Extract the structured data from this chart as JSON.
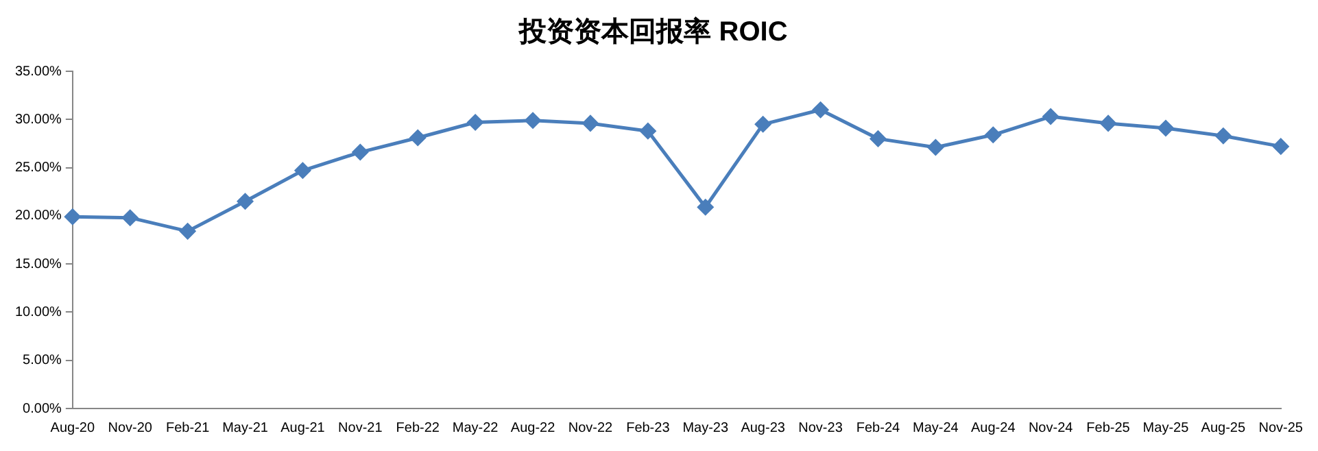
{
  "chart_data": {
    "type": "line",
    "title": "投资资本回报率 ROIC",
    "categories": [
      "Aug-20",
      "Nov-20",
      "Feb-21",
      "May-21",
      "Aug-21",
      "Nov-21",
      "Feb-22",
      "May-22",
      "Aug-22",
      "Nov-22",
      "Feb-23",
      "May-23",
      "Aug-23",
      "Nov-23",
      "Feb-24",
      "May-24",
      "Aug-24",
      "Nov-24",
      "Feb-25",
      "May-25",
      "Aug-25",
      "Nov-25"
    ],
    "series": [
      {
        "color": "#4a7ebb",
        "values": [
          19.9,
          19.8,
          18.4,
          21.5,
          24.7,
          26.6,
          28.1,
          29.7,
          29.9,
          29.6,
          28.8,
          20.9,
          29.5,
          31.0,
          28.0,
          27.1,
          28.4,
          30.3,
          29.6,
          29.1,
          28.3,
          27.2
        ]
      }
    ],
    "ylim": [
      0,
      35
    ],
    "yticks": [
      {
        "value": 0,
        "label": "0.00%"
      },
      {
        "value": 5,
        "label": "5.00%"
      },
      {
        "value": 10,
        "label": "10.00%"
      },
      {
        "value": 15,
        "label": "15.00%"
      },
      {
        "value": 20,
        "label": "20.00%"
      },
      {
        "value": 25,
        "label": "25.00%"
      },
      {
        "value": 30,
        "label": "30.00%"
      },
      {
        "value": 35,
        "label": "35.00%"
      }
    ],
    "grid": false,
    "legend": false,
    "marker": "diamond",
    "line_style": "solid"
  }
}
